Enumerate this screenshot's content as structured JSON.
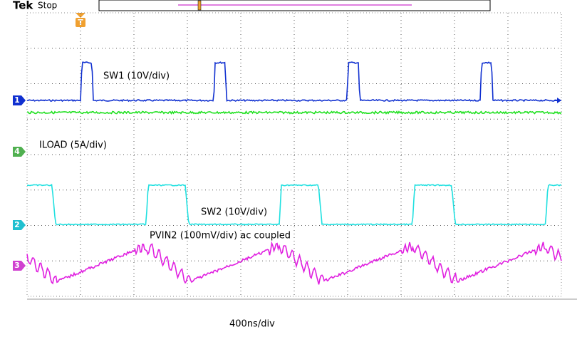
{
  "header": {
    "brand": "Tek",
    "status": "Stop",
    "trigger": "T"
  },
  "channels": [
    {
      "marker": "1",
      "label": "SW1 (10V/div)"
    },
    {
      "marker": "4",
      "label": "ILOAD (5A/div)"
    },
    {
      "marker": "2",
      "label": "SW2 (10V/div)"
    },
    {
      "marker": "3",
      "label": "PVIN2 (100mV/div) ac coupled"
    }
  ],
  "timebase": "400ns/div"
}
